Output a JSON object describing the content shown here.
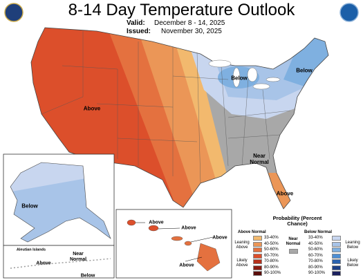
{
  "header": {
    "title": "8-14 Day Temperature Outlook",
    "valid_label": "Valid:",
    "valid": "December 8 - 14, 2025",
    "issued_label": "Issued:",
    "issued": "November 30, 2025"
  },
  "map_labels": {
    "conus": [
      "Above",
      "Below",
      "Below",
      "Near Normal",
      "Above"
    ],
    "alaska": [
      "Below"
    ],
    "aleutian": {
      "title": "Aleutian Islands",
      "labels": [
        "Near Normal",
        "Above",
        "Below"
      ]
    },
    "hawaii": [
      "Above",
      "Above",
      "Above",
      "Above"
    ]
  },
  "legend": {
    "title": "Probability (Percent Chance)",
    "above": {
      "title": "Above Normal",
      "bins": [
        "33-40%",
        "40-50%",
        "50-60%",
        "60-70%",
        "70-80%",
        "80-90%",
        "90-100%"
      ],
      "colors": [
        "#f2b96e",
        "#eb9657",
        "#e4713f",
        "#dc4f2b",
        "#b5311c",
        "#8a1c12",
        "#5a0e0a"
      ]
    },
    "below": {
      "title": "Below Normal",
      "bins": [
        "33-40%",
        "40-50%",
        "50-60%",
        "60-70%",
        "70-80%",
        "80-90%",
        "90-100%"
      ],
      "colors": [
        "#c8d6ef",
        "#a8c4e8",
        "#7fb0e0",
        "#4d8fd4",
        "#2a62ae",
        "#1d4086",
        "#1b215e"
      ]
    },
    "near": {
      "title": "Near Normal",
      "color": "#a8a8a8"
    },
    "leaning_above": "Leaning Above",
    "likely_above": "Likely Above",
    "leaning_below": "Leaning Below",
    "likely_below": "Likely Below"
  }
}
